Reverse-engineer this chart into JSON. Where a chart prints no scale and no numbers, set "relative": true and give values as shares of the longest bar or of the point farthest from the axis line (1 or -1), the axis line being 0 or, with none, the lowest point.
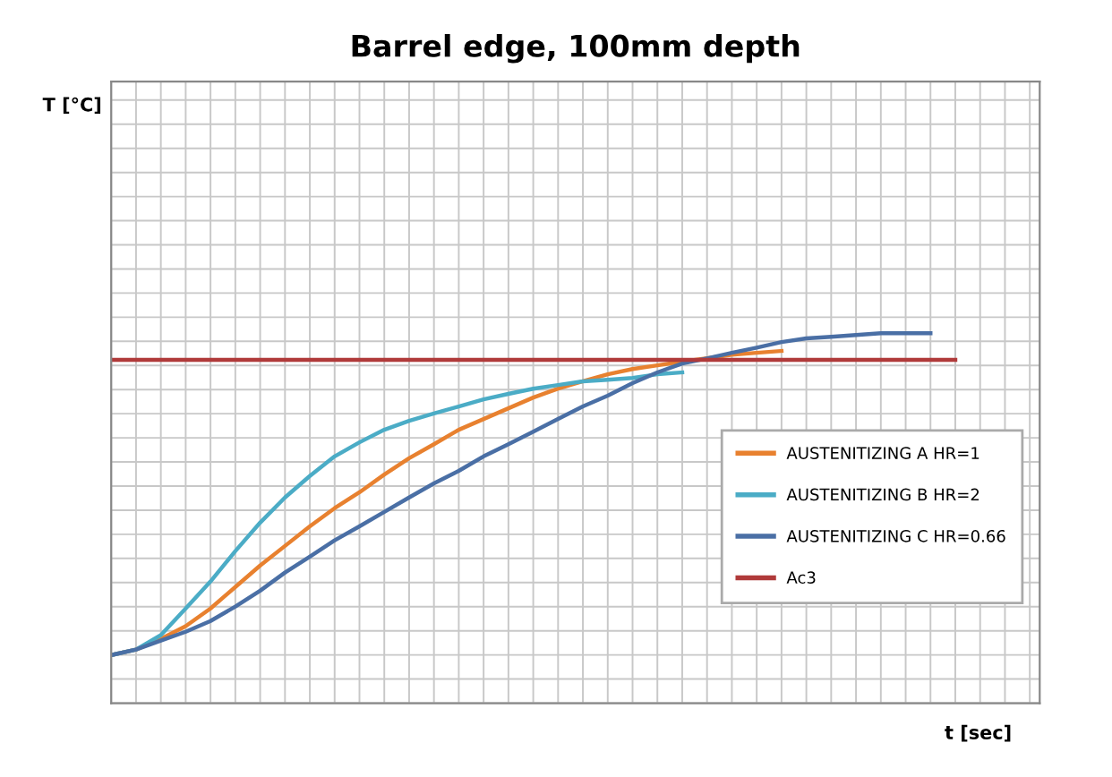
{
  "chart_data": {
    "type": "line",
    "title": "Barrel edge, 100mm depth",
    "xlabel": "t [sec]",
    "annotations": [
      "T [°C]"
    ],
    "relative": true,
    "grid": true,
    "legend": "right",
    "marker": "none",
    "line_style": "solid",
    "categories": [
      null,
      null,
      null,
      null,
      null,
      null,
      null,
      null,
      null,
      null,
      null,
      null,
      null,
      null,
      null,
      null,
      null,
      null,
      null,
      null,
      null,
      null,
      null,
      null,
      null,
      null,
      null,
      null,
      null,
      null,
      null,
      null,
      null,
      null,
      null
    ],
    "series": [
      {
        "name": "AUSTENITIZING A HR=1",
        "color": "#e8812f",
        "values": [
          0.13,
          0.145,
          0.174,
          0.208,
          0.256,
          0.314,
          0.372,
          0.425,
          0.478,
          0.527,
          0.57,
          0.618,
          0.662,
          0.7,
          0.739,
          0.768,
          0.797,
          0.826,
          0.85,
          0.87,
          0.889,
          0.903,
          0.913,
          0.923,
          0.932,
          0.942,
          0.947,
          0.952,
          null,
          null,
          null,
          null,
          null,
          null,
          null
        ]
      },
      {
        "name": "AUSTENITIZING B HR=2",
        "color": "#4bacc6",
        "values": [
          0.13,
          0.145,
          0.184,
          0.256,
          0.329,
          0.411,
          0.488,
          0.556,
          0.614,
          0.667,
          0.705,
          0.739,
          0.763,
          0.783,
          0.802,
          0.821,
          0.836,
          0.85,
          0.86,
          0.87,
          0.874,
          0.879,
          0.889,
          0.894,
          null,
          null,
          null,
          null,
          null,
          null,
          null,
          null,
          null,
          null,
          null
        ]
      },
      {
        "name": "AUSTENITIZING C HR=0.66",
        "color": "#4a6fa5",
        "values": [
          0.13,
          0.145,
          0.169,
          0.193,
          0.222,
          0.261,
          0.304,
          0.353,
          0.396,
          0.44,
          0.478,
          0.517,
          0.556,
          0.594,
          0.628,
          0.667,
          0.7,
          0.734,
          0.768,
          0.802,
          0.831,
          0.865,
          0.894,
          0.918,
          0.932,
          0.947,
          0.961,
          0.976,
          0.986,
          0.99,
          0.995,
          1,
          1,
          1,
          null
        ]
      },
      {
        "name": "Ac3",
        "color": "#b03a3a",
        "values": [
          0.928,
          0.928,
          0.928,
          0.928,
          0.928,
          0.928,
          0.928,
          0.928,
          0.928,
          0.928,
          0.928,
          0.928,
          0.928,
          0.928,
          0.928,
          0.928,
          0.928,
          0.928,
          0.928,
          0.928,
          0.928,
          0.928,
          0.928,
          0.928,
          0.928,
          0.928,
          0.928,
          0.928,
          0.928,
          0.928,
          0.928,
          0.928,
          0.928,
          0.928,
          0.928
        ]
      }
    ]
  }
}
